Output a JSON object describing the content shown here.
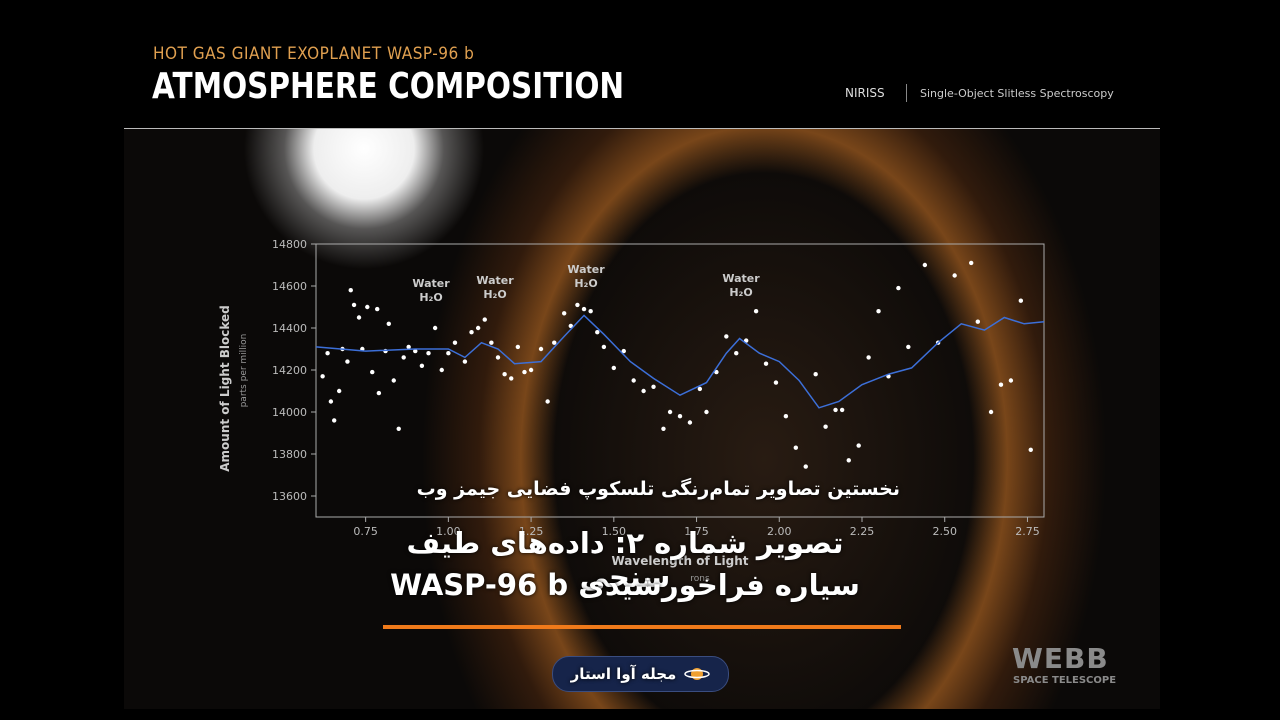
{
  "header": {
    "subtitle": "HOT GAS GIANT EXOPLANET WASP-96 b",
    "title": "ATMOSPHERE COMPOSITION",
    "instrument": "NIRISS",
    "mode": "Single-Object Slitless Spectroscopy"
  },
  "overlay": {
    "caption": "نخستین تصاویر تمام‌رنگی تلسکوپ فضایی جیمز وب",
    "heading_1": "تصویر شماره ۲: داده‌های طیف سنجی",
    "heading_2": "سیاره فراخورشیدی WASP-96 b",
    "badge": "مجله آوا استار"
  },
  "branding": {
    "logo": "WEBB",
    "logo_sub": "SPACE TELESCOPE"
  },
  "chart_data": {
    "type": "scatter",
    "ylabel": "Amount of Light Blocked",
    "ylabel_unit": "parts per million",
    "xlabel": "Wavelength of Light",
    "xlabel_unit": "rons",
    "xlim": [
      0.6,
      2.8
    ],
    "xticks": [
      {
        "value": 0.75,
        "label": "0.75"
      },
      {
        "value": 1,
        "label": "1.00"
      },
      {
        "value": 1.25,
        "label": "1.25"
      },
      {
        "value": 1.5,
        "label": "1.50"
      },
      {
        "value": 1.75,
        "label": "1.75"
      },
      {
        "value": 2,
        "label": "2.00"
      },
      {
        "value": 2.25,
        "label": "2.25"
      },
      {
        "value": 2.5,
        "label": "2.50"
      },
      {
        "value": 2.75,
        "label": "2.75"
      }
    ],
    "ylim": [
      13500,
      14800
    ],
    "yticks": [
      13600,
      13800,
      14000,
      14200,
      14400,
      14600,
      14800
    ],
    "annotations": [
      {
        "label": "Water",
        "formula": "H₂O"
      },
      {
        "label": "Water",
        "formula": "H₂O"
      },
      {
        "label": "Water",
        "formula": "H₂O"
      },
      {
        "label": "Water",
        "formula": "H₂O"
      }
    ],
    "series": [
      {
        "type": "scatter",
        "color": "#ffffff",
        "x": [
          0.62,
          0.635,
          0.645,
          0.655,
          0.67,
          0.68,
          0.695,
          0.705,
          0.715,
          0.73,
          0.74,
          0.755,
          0.77,
          0.785,
          0.79,
          0.81,
          0.82,
          0.835,
          0.85,
          0.865,
          0.88,
          0.9,
          0.92,
          0.94,
          0.96,
          0.98,
          1.0,
          1.02,
          1.05,
          1.07,
          1.09,
          1.11,
          1.13,
          1.15,
          1.17,
          1.19,
          1.21,
          1.23,
          1.25,
          1.28,
          1.3,
          1.32,
          1.35,
          1.37,
          1.39,
          1.41,
          1.43,
          1.45,
          1.47,
          1.5,
          1.53,
          1.56,
          1.59,
          1.62,
          1.65,
          1.67,
          1.7,
          1.73,
          1.76,
          1.78,
          1.81,
          1.84,
          1.87,
          1.9,
          1.93,
          1.96,
          1.99,
          2.02,
          2.05,
          2.08,
          2.11,
          2.14,
          2.17,
          2.19,
          2.21,
          2.24,
          2.27,
          2.3,
          2.33,
          2.36,
          2.39,
          2.44,
          2.48,
          2.53,
          2.58,
          2.6,
          2.64,
          2.67,
          2.7,
          2.73,
          2.76
        ],
        "values": [
          14170,
          14280,
          14050,
          13960,
          14100,
          14300,
          14240,
          14580,
          14510,
          14450,
          14300,
          14500,
          14190,
          14490,
          14090,
          14290,
          14420,
          14150,
          13920,
          14260,
          14310,
          14290,
          14220,
          14280,
          14400,
          14200,
          14280,
          14330,
          14240,
          14380,
          14400,
          14440,
          14330,
          14260,
          14180,
          14160,
          14310,
          14190,
          14200,
          14300,
          14050,
          14330,
          14470,
          14410,
          14510,
          14490,
          14480,
          14380,
          14310,
          14210,
          14290,
          14150,
          14100,
          14120,
          13920,
          14000,
          13980,
          13950,
          14110,
          14000,
          14190,
          14360,
          14280,
          14340,
          14480,
          14230,
          14140,
          13980,
          13830,
          13740,
          14180,
          13930,
          14010,
          14010,
          13770,
          13840,
          14260,
          14480,
          14170,
          14590,
          14310,
          14700,
          14330,
          14650,
          14710,
          14430,
          14000,
          14130,
          14150,
          14530,
          13820
        ]
      },
      {
        "type": "line",
        "color": "#3c6fd8",
        "x": [
          0.6,
          0.75,
          0.9,
          1.0,
          1.05,
          1.1,
          1.15,
          1.2,
          1.28,
          1.35,
          1.41,
          1.47,
          1.55,
          1.62,
          1.7,
          1.78,
          1.84,
          1.88,
          1.94,
          2.0,
          2.06,
          2.12,
          2.18,
          2.25,
          2.33,
          2.4,
          2.48,
          2.55,
          2.62,
          2.68,
          2.74,
          2.8
        ],
        "values": [
          14310,
          14290,
          14300,
          14300,
          14260,
          14330,
          14300,
          14230,
          14240,
          14360,
          14460,
          14370,
          14240,
          14160,
          14080,
          14140,
          14280,
          14350,
          14280,
          14240,
          14150,
          14020,
          14050,
          14130,
          14180,
          14210,
          14330,
          14420,
          14390,
          14450,
          14420,
          14430
        ]
      }
    ]
  }
}
